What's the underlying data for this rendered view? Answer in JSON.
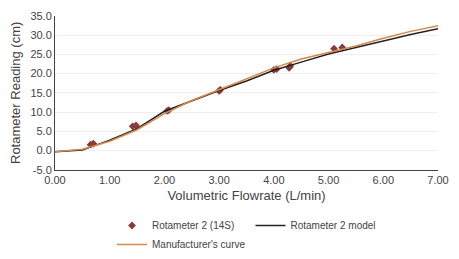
{
  "chart_data": {
    "type": "line",
    "xlabel": "Volumetric Flowrate (L/min)",
    "ylabel": "Rotameter Reading (cm)",
    "series": [
      {
        "name": "Rotameter 2 (14S)",
        "type": "scatter",
        "marker": "diamond",
        "color": "#8B3A3A",
        "x": [
          0.65,
          0.7,
          1.42,
          1.48,
          2.05,
          2.08,
          3.0,
          3.02,
          4.0,
          4.05,
          4.28,
          4.3,
          5.1,
          5.25
        ],
        "values": [
          1.5,
          1.8,
          6.3,
          6.5,
          10.3,
          10.5,
          15.5,
          15.8,
          21.0,
          21.2,
          21.5,
          22.0,
          26.5,
          26.8
        ]
      },
      {
        "name": "Rotameter 2 model",
        "type": "line",
        "line_style": "solid",
        "color": "#222222",
        "x": [
          0.0,
          0.5,
          1.0,
          1.5,
          2.0,
          2.5,
          3.0,
          3.5,
          4.0,
          4.5,
          5.0,
          5.5,
          6.0,
          6.5,
          7.0
        ],
        "values": [
          -0.35,
          0.1,
          2.7,
          5.7,
          10.2,
          13.0,
          15.6,
          18.1,
          20.9,
          23.0,
          25.1,
          26.8,
          28.6,
          30.2,
          31.7
        ]
      },
      {
        "name": "Manufacturer's curve",
        "type": "line",
        "line_style": "solid",
        "color": "#D4884A",
        "x": [
          0.0,
          0.5,
          1.0,
          1.5,
          2.0,
          2.5,
          3.0,
          3.5,
          4.0,
          4.5,
          5.0,
          5.5,
          6.0,
          6.5,
          7.0
        ],
        "values": [
          -0.35,
          0.3,
          2.4,
          5.4,
          9.6,
          13.0,
          15.8,
          18.7,
          21.5,
          23.8,
          25.5,
          27.2,
          29.2,
          31.0,
          32.5
        ]
      }
    ],
    "xlim": [
      0.0,
      7.0
    ],
    "xticks": [
      {
        "value": 0,
        "label": "0.00"
      },
      {
        "value": 1,
        "label": "1.00"
      },
      {
        "value": 2,
        "label": "2.00"
      },
      {
        "value": 3,
        "label": "3.00"
      },
      {
        "value": 4,
        "label": "4.00"
      },
      {
        "value": 5,
        "label": "5.00"
      },
      {
        "value": 6,
        "label": "6.00"
      },
      {
        "value": 7,
        "label": "7.00"
      }
    ],
    "ylim": [
      -5.0,
      35.0
    ],
    "yticks": [
      {
        "value": -5,
        "label": "-5.0"
      },
      {
        "value": 0,
        "label": "0.0"
      },
      {
        "value": 5,
        "label": "5.0"
      },
      {
        "value": 10,
        "label": "10.0"
      },
      {
        "value": 15,
        "label": "15.0"
      },
      {
        "value": 20,
        "label": "20.0"
      },
      {
        "value": 25,
        "label": "25.0"
      },
      {
        "value": 30,
        "label": "30.0"
      },
      {
        "value": 35,
        "label": "35.0"
      }
    ],
    "grid": true,
    "legend": "bottom"
  }
}
